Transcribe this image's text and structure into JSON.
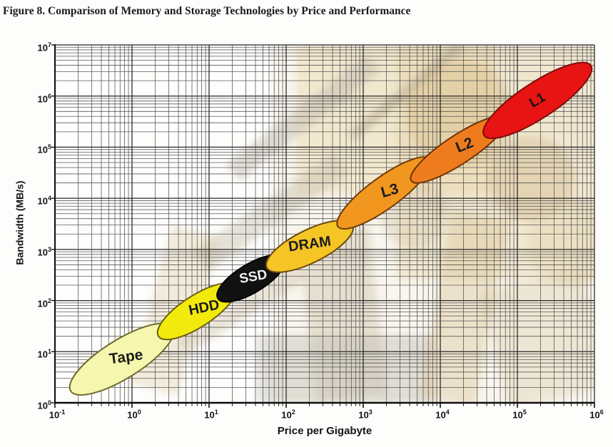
{
  "figure": {
    "title": "Figure 8. Comparison of Memory and Storage Technologies by Price and Performance"
  },
  "chart_data": {
    "type": "scatter",
    "subtype": "ellipse-regions-log-log",
    "title": "Figure 8. Comparison of Memory and Storage Technologies by Price and Performance",
    "xlabel": "Price per Gigabyte",
    "ylabel": "Bandwidth (MB/s)",
    "x_scale": "log",
    "y_scale": "log",
    "xlim": [
      0.1,
      1000000
    ],
    "ylim": [
      1,
      10000000
    ],
    "grid": true,
    "tick_base": "10",
    "x_tick_exponents": [
      "-1",
      "0",
      "1",
      "2",
      "3",
      "4",
      "5",
      "6"
    ],
    "y_tick_exponents": [
      "0",
      "1",
      "2",
      "3",
      "4",
      "5",
      "6",
      "7"
    ],
    "series": [
      {
        "label": "Tape",
        "price_per_gb_range": [
          0.16,
          3.4
        ],
        "bandwidth_mbs_range": [
          1.7,
          30
        ],
        "fill": "#F6F7AE",
        "outline": "#6e6a2e",
        "label_color": "#1c1c1c"
      },
      {
        "label": "HDD",
        "price_per_gb_range": [
          2.2,
          22
        ],
        "bandwidth_mbs_range": [
          20,
          190
        ],
        "fill": "#F3EA0D",
        "outline": "#6b5e14",
        "label_color": "#1c1c1c"
      },
      {
        "label": "SSD",
        "price_per_gb_range": [
          13,
          95
        ],
        "bandwidth_mbs_range": [
          110,
          670
        ],
        "fill": "#111111",
        "outline": "#000000",
        "label_color": "#f2f2f2"
      },
      {
        "label": "DRAM",
        "price_per_gb_range": [
          56,
          730
        ],
        "bandwidth_mbs_range": [
          440,
          3000
        ],
        "fill": "#F4C525",
        "outline": "#6e4a10",
        "label_color": "#1c1c1c"
      },
      {
        "label": "L3",
        "price_per_gb_range": [
          470,
          7400
        ],
        "bandwidth_mbs_range": [
          2800,
          58000
        ],
        "fill": "#F1961F",
        "outline": "#703c0a",
        "label_color": "#1c1c1c"
      },
      {
        "label": "L2",
        "price_per_gb_range": [
          4200,
          72000
        ],
        "bandwidth_mbs_range": [
          22000,
          370000
        ],
        "fill": "#EE7C1E",
        "outline": "#6e3407",
        "label_color": "#1c1c1c"
      },
      {
        "label": "L1",
        "price_per_gb_range": [
          37000,
          900000
        ],
        "bandwidth_mbs_range": [
          170000,
          3950000
        ],
        "fill": "#E81313",
        "outline": "#7c0d08",
        "label_color": "#141414"
      }
    ]
  }
}
